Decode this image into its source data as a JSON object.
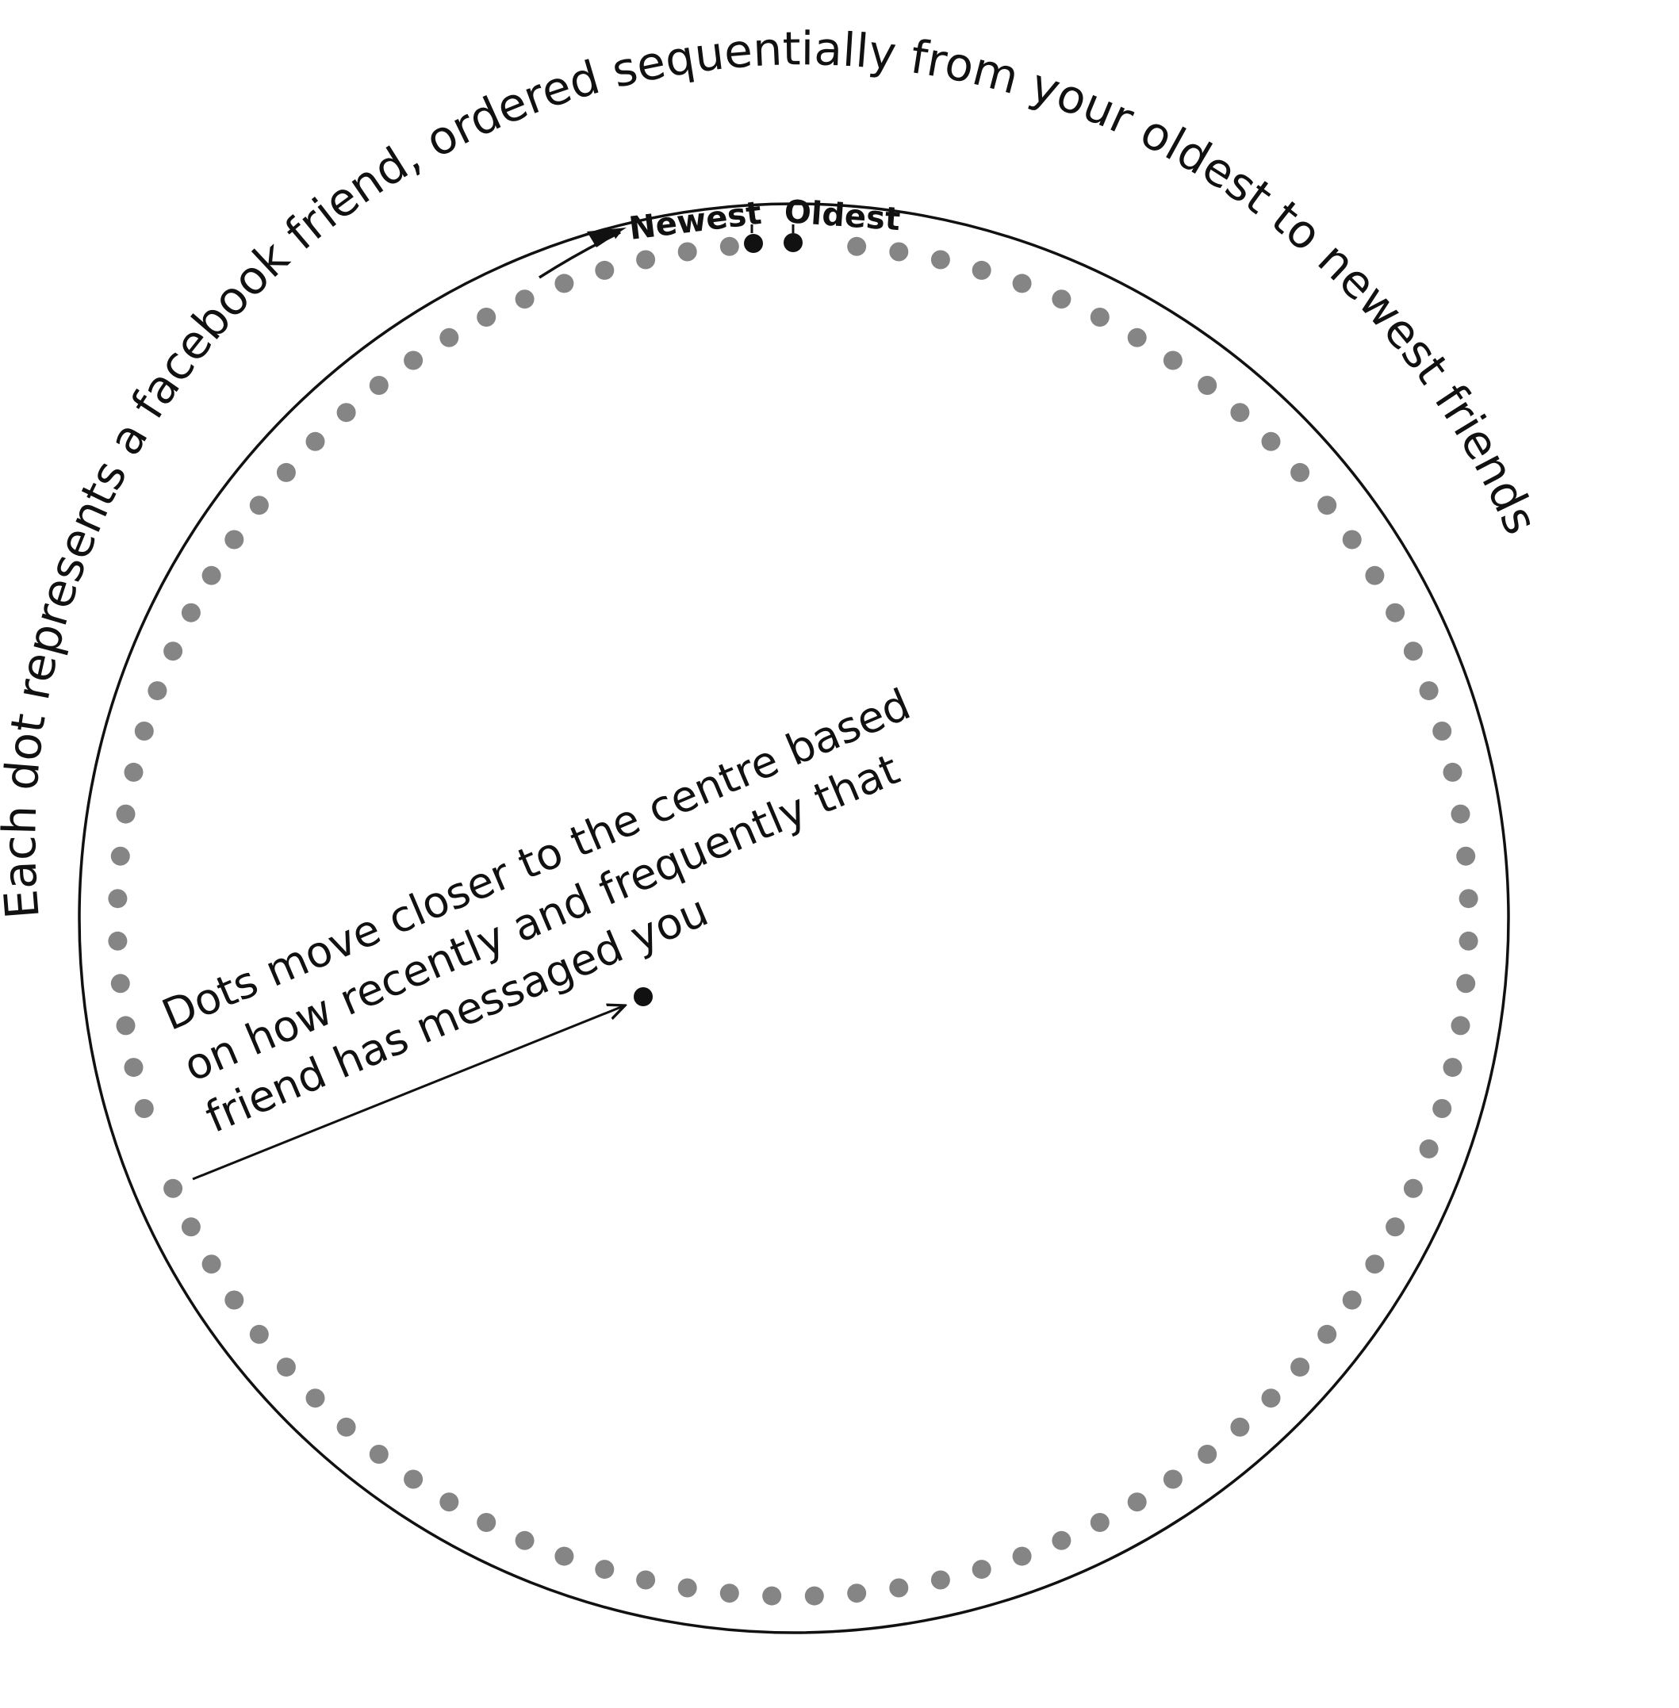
{
  "diagram": {
    "arc_caption": "Each dot represents a facebook friend, ordered sequentially from your oldest to newest friends",
    "newest_label": "Newest",
    "oldest_label": "Oldest",
    "centre_caption": {
      "lines": [
        "Dots move closer to the centre based",
        "on how recently and frequently that",
        "friend has messaged you"
      ]
    },
    "ring_dot_count": 100,
    "colors": {
      "ring_dot": "#858585",
      "highlight_dot": "#111111",
      "outline": "#111111",
      "text": "#111111"
    }
  }
}
